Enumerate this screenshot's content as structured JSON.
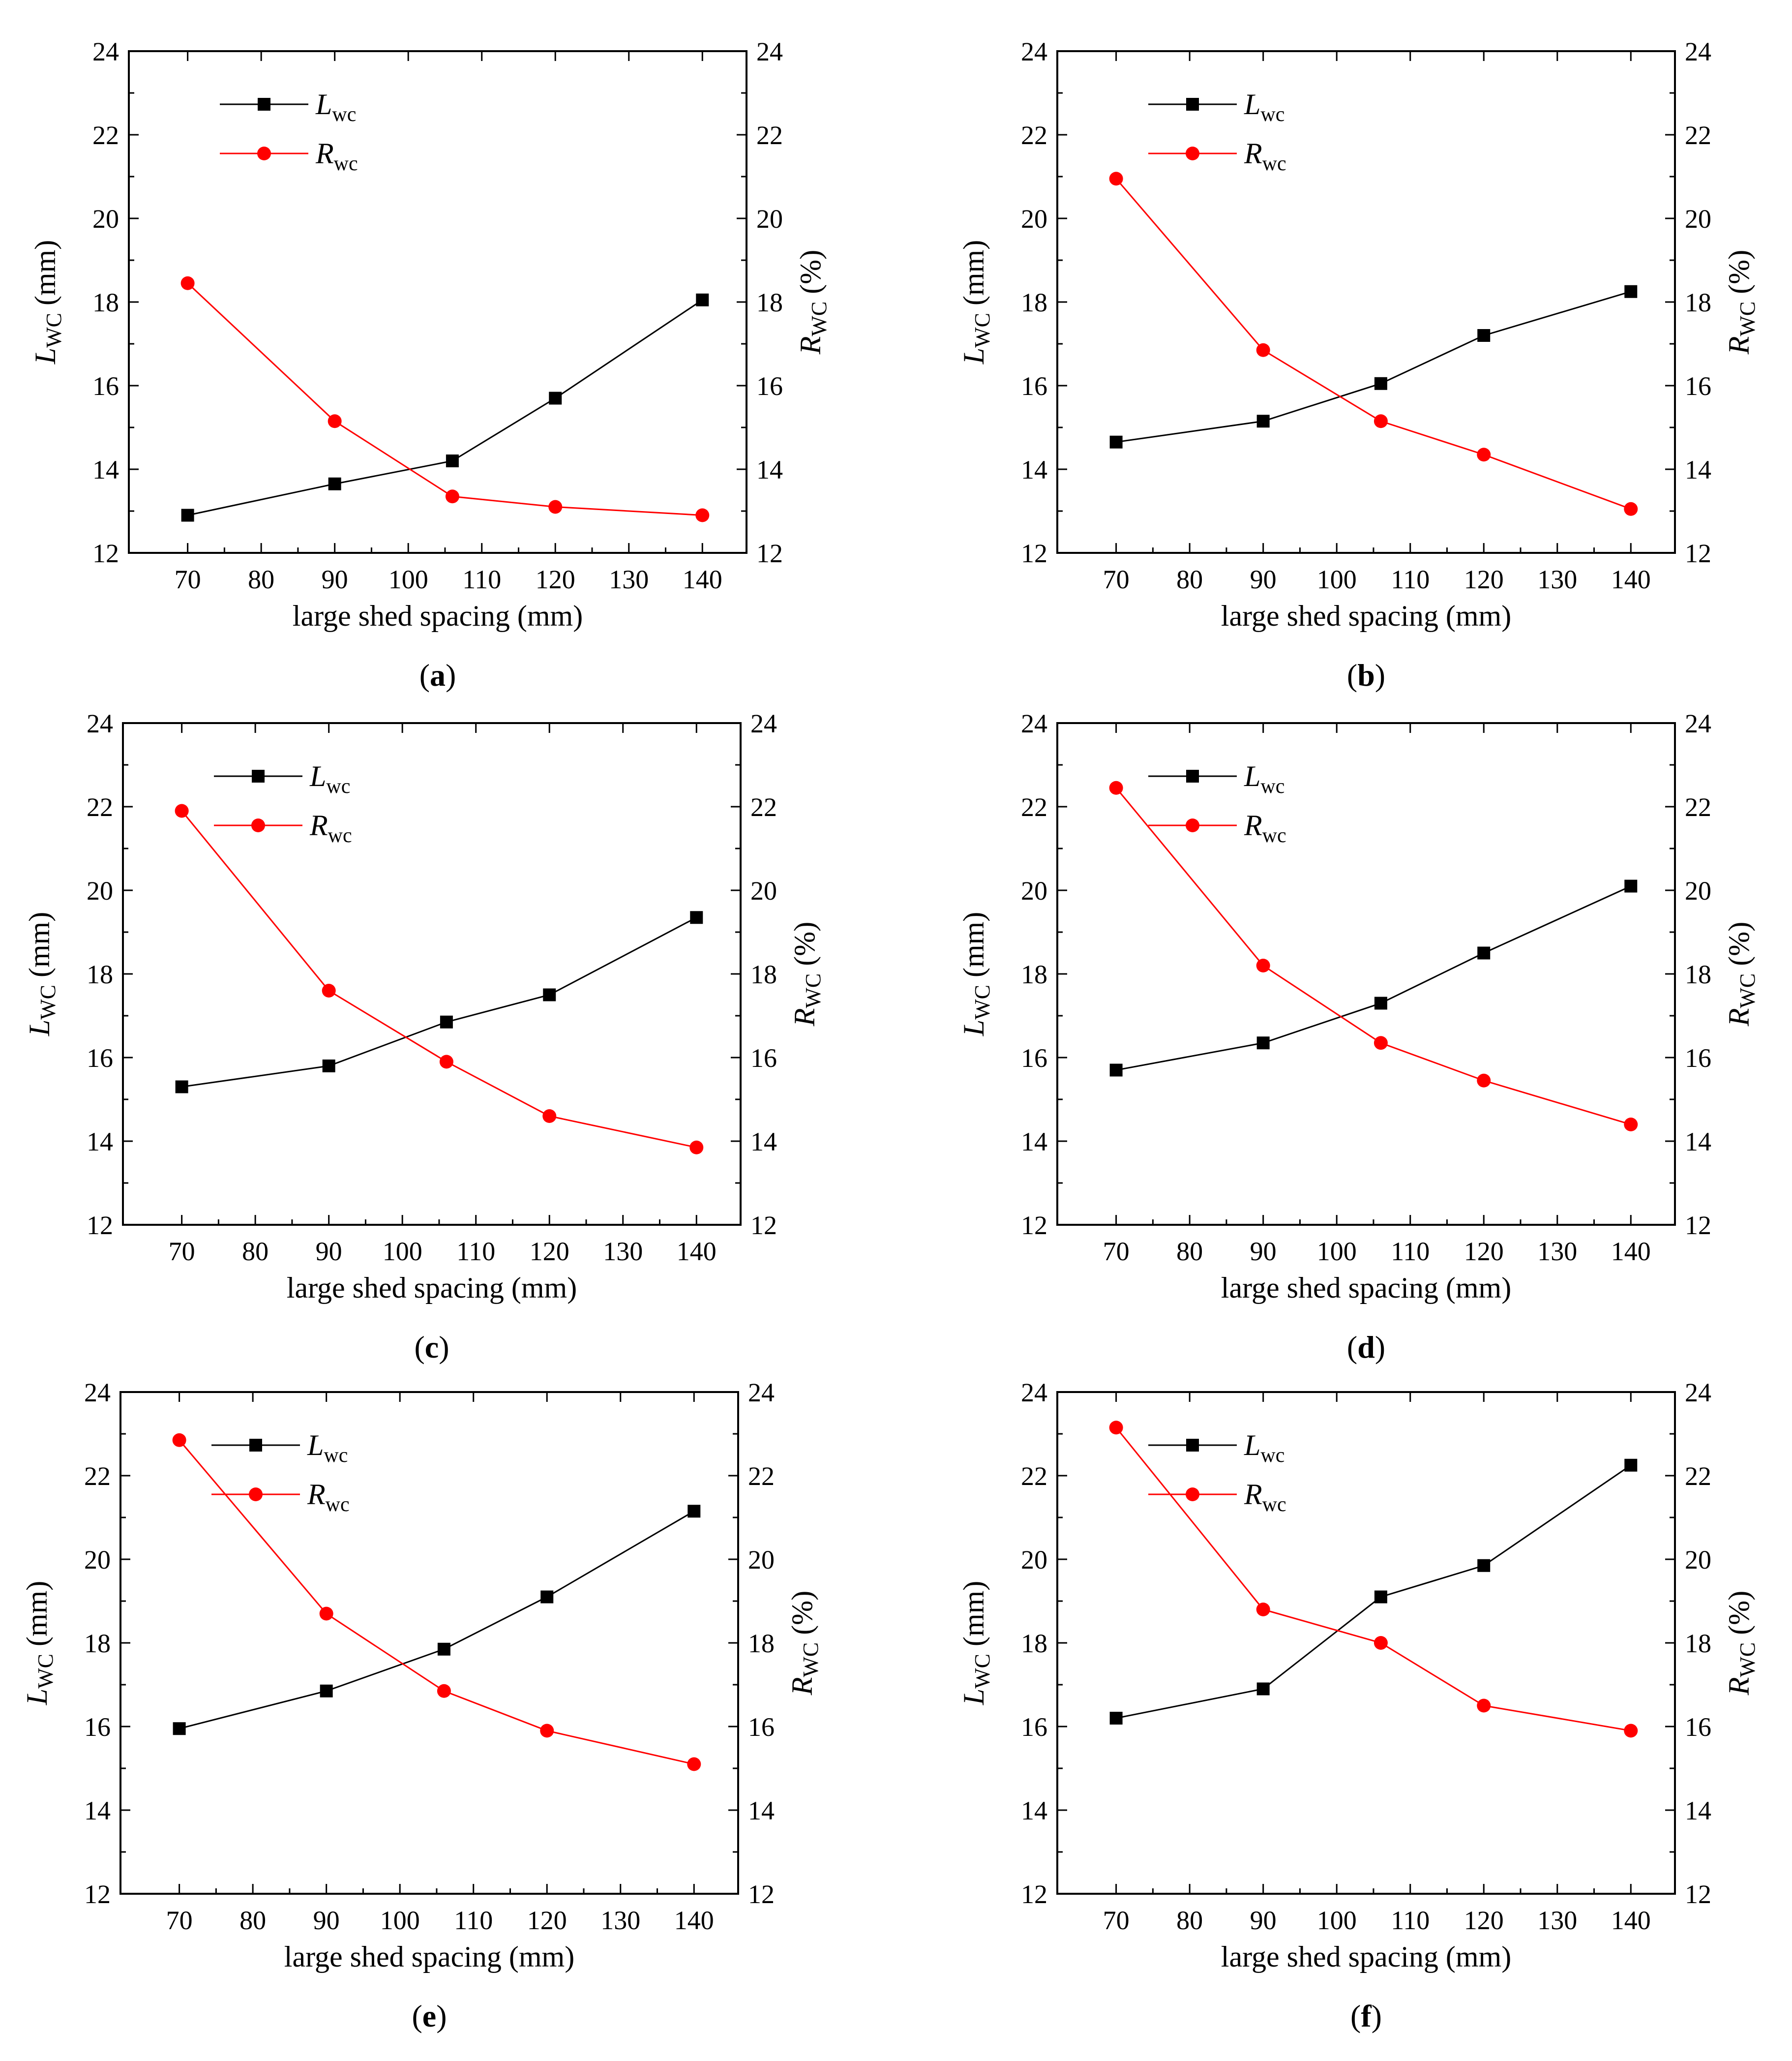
{
  "figure": {
    "panels": [
      {
        "id": "a",
        "caption_letter": "a",
        "xlabel": "large shed spacing (mm)",
        "ylabel_left_main": "L",
        "ylabel_left_sub": "WC",
        "ylabel_left_unit": " (mm)",
        "ylabel_right_main": "R",
        "ylabel_right_sub": "WC",
        "ylabel_right_unit": " (%)",
        "legend": [
          {
            "name": "L",
            "sub": "wc",
            "color": "#000000",
            "marker": "square"
          },
          {
            "name": "R",
            "sub": "wc",
            "color": "#ff0000",
            "marker": "circle"
          }
        ]
      },
      {
        "id": "b",
        "caption_letter": "b",
        "xlabel": "large shed spacing (mm)",
        "ylabel_left_main": "L",
        "ylabel_left_sub": "WC",
        "ylabel_left_unit": " (mm)",
        "ylabel_right_main": "R",
        "ylabel_right_sub": "WC",
        "ylabel_right_unit": " (%)",
        "legend": [
          {
            "name": "L",
            "sub": "wc",
            "color": "#000000",
            "marker": "square"
          },
          {
            "name": "R",
            "sub": "wc",
            "color": "#ff0000",
            "marker": "circle"
          }
        ]
      },
      {
        "id": "c",
        "caption_letter": "c",
        "xlabel": "large shed spacing (mm)",
        "ylabel_left_main": "L",
        "ylabel_left_sub": "WC",
        "ylabel_left_unit": " (mm)",
        "ylabel_right_main": "R",
        "ylabel_right_sub": "WC",
        "ylabel_right_unit": " (%)",
        "legend": [
          {
            "name": "L",
            "sub": "wc",
            "color": "#000000",
            "marker": "square"
          },
          {
            "name": "R",
            "sub": "wc",
            "color": "#ff0000",
            "marker": "circle"
          }
        ]
      },
      {
        "id": "d",
        "caption_letter": "d",
        "xlabel": "large shed spacing (mm)",
        "ylabel_left_main": "L",
        "ylabel_left_sub": "WC",
        "ylabel_left_unit": " (mm)",
        "ylabel_right_main": "R",
        "ylabel_right_sub": "WC",
        "ylabel_right_unit": " (%)",
        "legend": [
          {
            "name": "L",
            "sub": "wc",
            "color": "#000000",
            "marker": "square"
          },
          {
            "name": "R",
            "sub": "wc",
            "color": "#ff0000",
            "marker": "circle"
          }
        ]
      },
      {
        "id": "e",
        "caption_letter": "e",
        "xlabel": "large shed spacing (mm)",
        "ylabel_left_main": "L",
        "ylabel_left_sub": "WC",
        "ylabel_left_unit": " (mm)",
        "ylabel_right_main": "R",
        "ylabel_right_sub": "WC",
        "ylabel_right_unit": " (%)",
        "legend": [
          {
            "name": "L",
            "sub": "wc",
            "color": "#000000",
            "marker": "square"
          },
          {
            "name": "R",
            "sub": "wc",
            "color": "#ff0000",
            "marker": "circle"
          }
        ]
      },
      {
        "id": "f",
        "caption_letter": "f",
        "xlabel": "large shed spacing (mm)",
        "ylabel_left_main": "L",
        "ylabel_left_sub": "WC",
        "ylabel_left_unit": " (mm)",
        "ylabel_right_main": "R",
        "ylabel_right_sub": "WC",
        "ylabel_right_unit": " (%)",
        "legend": [
          {
            "name": "L",
            "sub": "wc",
            "color": "#000000",
            "marker": "square"
          },
          {
            "name": "R",
            "sub": "wc",
            "color": "#ff0000",
            "marker": "circle"
          }
        ]
      }
    ]
  },
  "chart_data": [
    {
      "panel": "a",
      "type": "line",
      "x": [
        70,
        90,
        106,
        120,
        140
      ],
      "xlim": [
        62,
        146
      ],
      "xticks": [
        70,
        80,
        90,
        100,
        110,
        120,
        130,
        140
      ],
      "ylim": [
        12,
        24
      ],
      "yticks": [
        12,
        14,
        16,
        18,
        20,
        22,
        24
      ],
      "y2lim": [
        12,
        24
      ],
      "y2ticks": [
        12,
        14,
        16,
        18,
        20,
        22,
        24
      ],
      "xlabel": "large shed spacing (mm)",
      "ylabel": "LWC (mm)",
      "y2label": "RWC (%)",
      "series": [
        {
          "name": "Lwc",
          "axis": "left",
          "values": [
            12.9,
            13.65,
            14.2,
            15.7,
            18.05
          ]
        },
        {
          "name": "Rwc",
          "axis": "right",
          "values": [
            18.45,
            15.15,
            13.35,
            13.1,
            12.9
          ]
        }
      ]
    },
    {
      "panel": "b",
      "type": "line",
      "x": [
        70,
        90,
        106,
        120,
        140
      ],
      "xlim": [
        62,
        146
      ],
      "xticks": [
        70,
        80,
        90,
        100,
        110,
        120,
        130,
        140
      ],
      "ylim": [
        12,
        24
      ],
      "yticks": [
        12,
        14,
        16,
        18,
        20,
        22,
        24
      ],
      "y2lim": [
        12,
        24
      ],
      "y2ticks": [
        12,
        14,
        16,
        18,
        20,
        22,
        24
      ],
      "xlabel": "large shed spacing (mm)",
      "ylabel": "LWC (mm)",
      "y2label": "RWC (%)",
      "series": [
        {
          "name": "Lwc",
          "axis": "left",
          "values": [
            14.65,
            15.15,
            16.05,
            17.2,
            18.25
          ]
        },
        {
          "name": "Rwc",
          "axis": "right",
          "values": [
            20.95,
            16.85,
            15.15,
            14.35,
            13.05
          ]
        }
      ]
    },
    {
      "panel": "c",
      "type": "line",
      "x": [
        70,
        90,
        106,
        120,
        140
      ],
      "xlim": [
        62,
        146
      ],
      "xticks": [
        70,
        80,
        90,
        100,
        110,
        120,
        130,
        140
      ],
      "ylim": [
        12,
        24
      ],
      "yticks": [
        12,
        14,
        16,
        18,
        20,
        22,
        24
      ],
      "y2lim": [
        12,
        24
      ],
      "y2ticks": [
        12,
        14,
        16,
        18,
        20,
        22,
        24
      ],
      "xlabel": "large shed spacing (mm)",
      "ylabel": "LWC (mm)",
      "y2label": "RWC (%)",
      "series": [
        {
          "name": "Lwc",
          "axis": "left",
          "values": [
            15.3,
            15.8,
            16.85,
            17.5,
            19.35
          ]
        },
        {
          "name": "Rwc",
          "axis": "right",
          "values": [
            21.9,
            17.6,
            15.9,
            14.6,
            13.85
          ]
        }
      ]
    },
    {
      "panel": "d",
      "type": "line",
      "x": [
        70,
        90,
        106,
        120,
        140
      ],
      "xlim": [
        62,
        146
      ],
      "xticks": [
        70,
        80,
        90,
        100,
        110,
        120,
        130,
        140
      ],
      "ylim": [
        12,
        24
      ],
      "yticks": [
        12,
        14,
        16,
        18,
        20,
        22,
        24
      ],
      "y2lim": [
        12,
        24
      ],
      "y2ticks": [
        12,
        14,
        16,
        18,
        20,
        22,
        24
      ],
      "xlabel": "large shed spacing (mm)",
      "ylabel": "LWC (mm)",
      "y2label": "RWC (%)",
      "series": [
        {
          "name": "Lwc",
          "axis": "left",
          "values": [
            15.7,
            16.35,
            17.3,
            18.5,
            20.1
          ]
        },
        {
          "name": "Rwc",
          "axis": "right",
          "values": [
            22.45,
            18.2,
            16.35,
            15.45,
            14.4
          ]
        }
      ]
    },
    {
      "panel": "e",
      "type": "line",
      "x": [
        70,
        90,
        106,
        120,
        140
      ],
      "xlim": [
        62,
        146
      ],
      "xticks": [
        70,
        80,
        90,
        100,
        110,
        120,
        130,
        140
      ],
      "ylim": [
        12,
        24
      ],
      "yticks": [
        12,
        14,
        16,
        18,
        20,
        22,
        24
      ],
      "y2lim": [
        12,
        24
      ],
      "y2ticks": [
        12,
        14,
        16,
        18,
        20,
        22,
        24
      ],
      "xlabel": "large shed spacing (mm)",
      "ylabel": "LWC (mm)",
      "y2label": "RWC (%)",
      "series": [
        {
          "name": "Lwc",
          "axis": "left",
          "values": [
            15.95,
            16.85,
            17.85,
            19.1,
            21.15
          ]
        },
        {
          "name": "Rwc",
          "axis": "right",
          "values": [
            22.85,
            18.7,
            16.85,
            15.9,
            15.1
          ]
        }
      ]
    },
    {
      "panel": "f",
      "type": "line",
      "x": [
        70,
        90,
        106,
        120,
        140
      ],
      "xlim": [
        62,
        146
      ],
      "xticks": [
        70,
        80,
        90,
        100,
        110,
        120,
        130,
        140
      ],
      "ylim": [
        12,
        24
      ],
      "yticks": [
        12,
        14,
        16,
        18,
        20,
        22,
        24
      ],
      "y2lim": [
        12,
        24
      ],
      "y2ticks": [
        12,
        14,
        16,
        18,
        20,
        22,
        24
      ],
      "xlabel": "large shed spacing (mm)",
      "ylabel": "LWC (mm)",
      "y2label": "RWC (%)",
      "series": [
        {
          "name": "Lwc",
          "axis": "left",
          "values": [
            16.2,
            16.9,
            19.1,
            19.85,
            22.25
          ]
        },
        {
          "name": "Rwc",
          "axis": "right",
          "values": [
            23.15,
            18.8,
            18.0,
            16.5,
            15.9
          ]
        }
      ]
    }
  ]
}
